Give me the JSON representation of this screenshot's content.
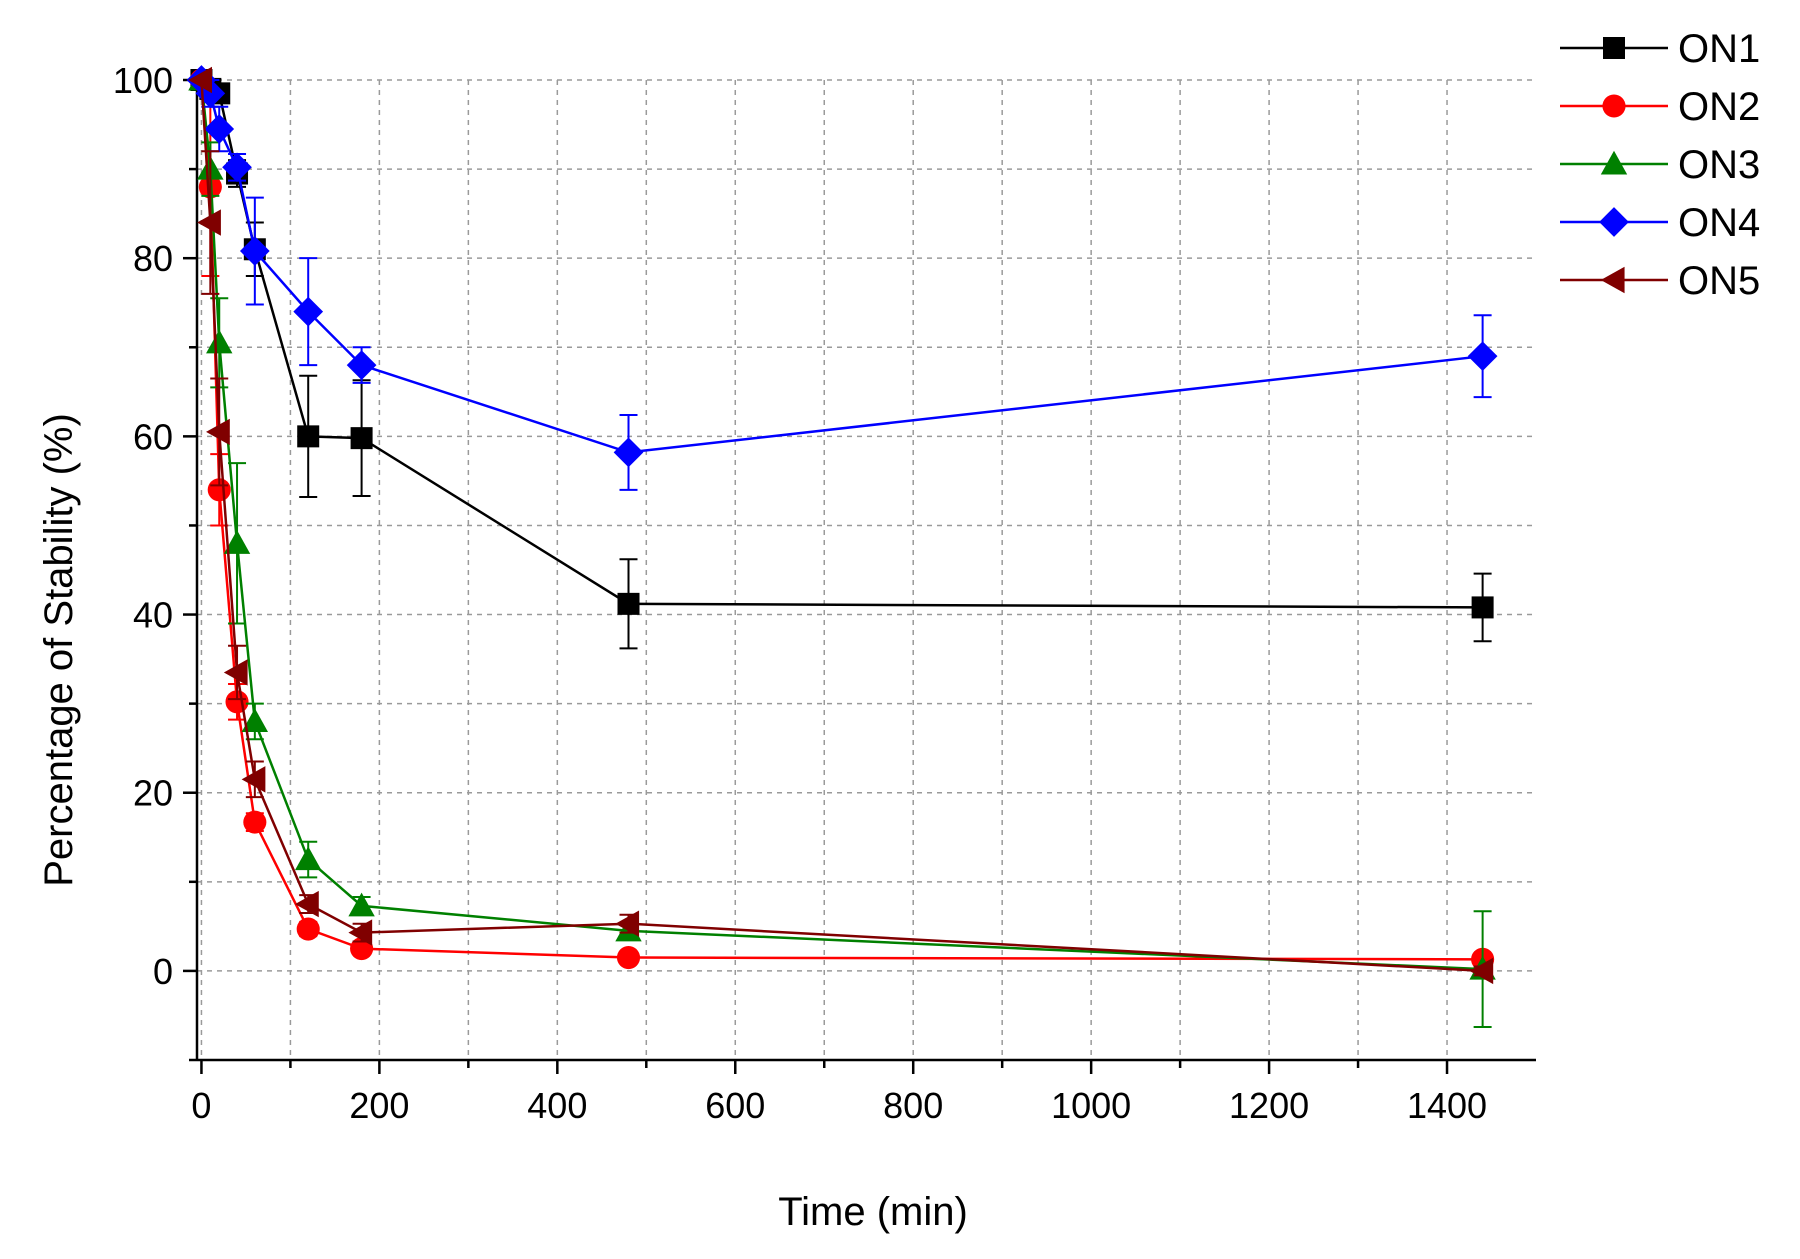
{
  "chart_data": {
    "type": "line",
    "title": "",
    "xlabel": "Time (min)",
    "ylabel": "Percentage of Stability (%)",
    "xlim": [
      -5,
      1500
    ],
    "ylim": [
      -10,
      100
    ],
    "xticks": [
      0,
      200,
      400,
      600,
      800,
      1000,
      1200,
      1400
    ],
    "xtick_labels": [
      "0",
      "200",
      "400",
      "600",
      "800",
      "1000",
      "1200",
      "1400"
    ],
    "yticks": [
      0,
      20,
      40,
      60,
      80,
      100
    ],
    "ytick_labels": [
      "0",
      "20",
      "40",
      "60",
      "80",
      "100"
    ],
    "grid": true,
    "legend_position": "top-right (outside)",
    "x": [
      0,
      10,
      20,
      40,
      60,
      120,
      180,
      480,
      1440
    ],
    "series": [
      {
        "name": "ON1",
        "color": "#000000",
        "marker": "square",
        "values": [
          100,
          99,
          98.5,
          89.5,
          81,
          60,
          59.8,
          41.2,
          40.8
        ],
        "errors": [
          0,
          0.5,
          0.8,
          1.5,
          3,
          6.8,
          6.5,
          5,
          3.8
        ]
      },
      {
        "name": "ON2",
        "color": "#ff0000",
        "marker": "circle",
        "values": [
          100,
          88,
          54,
          30.2,
          16.7,
          4.7,
          2.5,
          1.5,
          1.3
        ],
        "errors": [
          0,
          10,
          4,
          2,
          1,
          0.8,
          0.6,
          0.5,
          0.5
        ]
      },
      {
        "name": "ON3",
        "color": "#008000",
        "marker": "triangle-up",
        "values": [
          100,
          90,
          70.5,
          48,
          28,
          12.5,
          7.3,
          4.5,
          0.2
        ],
        "errors": [
          0,
          3,
          5,
          9,
          2,
          2,
          1,
          0.8,
          6.5
        ]
      },
      {
        "name": "ON4",
        "color": "#0000ff",
        "marker": "diamond",
        "values": [
          100,
          98.5,
          94.5,
          90.2,
          80.8,
          74,
          68,
          58.2,
          69
        ],
        "errors": [
          0,
          1.5,
          2.5,
          1.5,
          6,
          6,
          2,
          4.2,
          4.6
        ]
      },
      {
        "name": "ON5",
        "color": "#800000",
        "marker": "triangle-left",
        "values": [
          100,
          84,
          60.5,
          33.5,
          21.5,
          7.5,
          4.3,
          5.3,
          0
        ],
        "errors": [
          0,
          8,
          6,
          3,
          2,
          1,
          1,
          1,
          0.5
        ]
      }
    ]
  }
}
